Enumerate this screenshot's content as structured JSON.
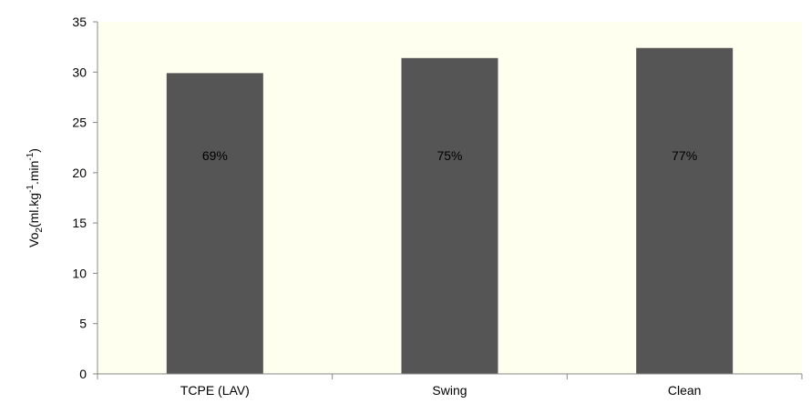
{
  "chart_data": {
    "type": "bar",
    "categories": [
      "TCPE (LAV)",
      "Swing",
      "Clean"
    ],
    "values": [
      29.9,
      31.4,
      32.4
    ],
    "data_labels": [
      "69%",
      "75%",
      "77%"
    ],
    "ylabel_parts": {
      "main": "Vo",
      "sub": "2",
      "unit_a": "(ml.kg",
      "sup_a": "-1",
      "unit_b": ".min",
      "sup_b": "-1",
      "close": ")"
    },
    "ylim": [
      0,
      35
    ],
    "yticks": [
      0,
      5,
      10,
      15,
      20,
      25,
      30,
      35
    ],
    "ytick_labels": [
      "0",
      "5",
      "10",
      "15",
      "20",
      "25",
      "30",
      "35"
    ],
    "grid": false,
    "colors": {
      "bar": "#555555",
      "plot_background": "#fffff0",
      "axis": "#888888"
    }
  }
}
